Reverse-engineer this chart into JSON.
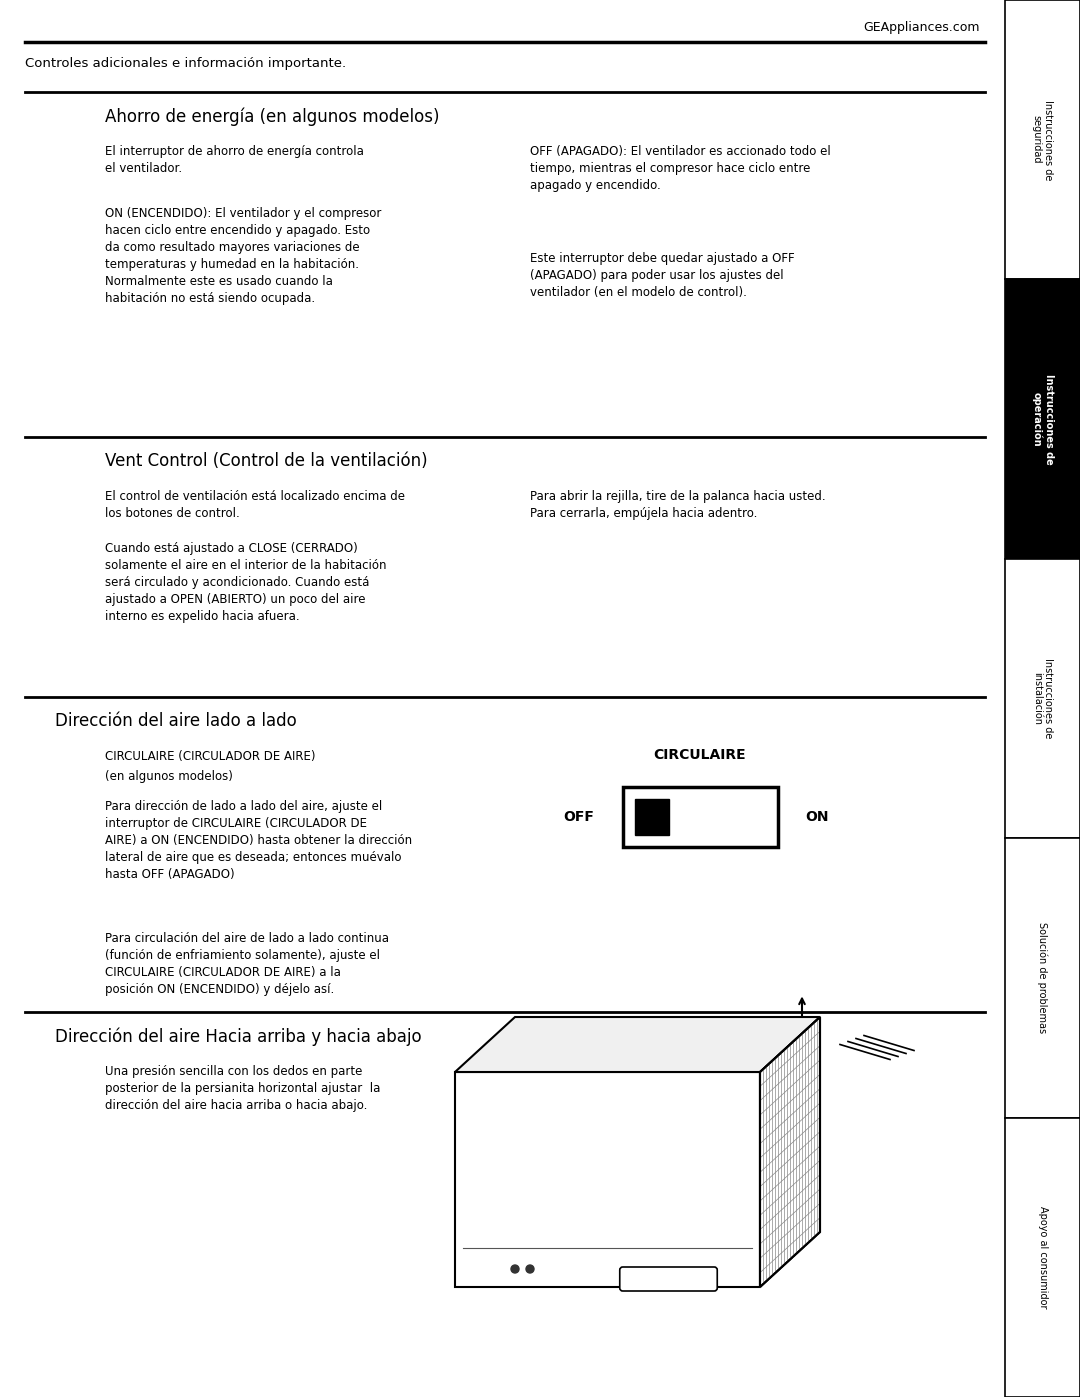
{
  "page_width": 10.8,
  "page_height": 13.97,
  "bg_color": "#ffffff",
  "text_color": "#000000",
  "header_url": "GEAppliances.com",
  "page_intro": "Controles adicionales e información importante.",
  "section1_title": "Ahorro de energía (en algunos modelos)",
  "section1_col1_p1": "El interruptor de ahorro de energía controla\nel ventilador.",
  "section1_col1_p2": "ON (ENCENDIDO): El ventilador y el compresor\nhacen ciclo entre encendido y apagado. Esto\nda como resultado mayores variaciones de\ntemperaturas y humedad en la habitación.\nNormalmente este es usado cuando la\nhabitación no está siendo ocupada.",
  "section1_col2_p1": "OFF (APAGADO): El ventilador es accionado todo el\ntiempo, mientras el compresor hace ciclo entre\napagado y encendido.",
  "section1_col2_p2": "Este interruptor debe quedar ajustado a OFF\n(APAGADO) para poder usar los ajustes del\nventilador (en el modelo de control).",
  "section2_title": "Vent Control (Control de la ventilación)",
  "section2_col1_p1": "El control de ventilación está localizado encima de\nlos botones de control.",
  "section2_col1_p2": "Cuando está ajustado a CLOSE (CERRADO)\nsolamente el aire en el interior de la habitación\nserá circulado y acondicionado. Cuando está\najustado a OPEN (ABIERTO) un poco del aire\ninterno es expelido hacia afuera.",
  "section2_col2_p1": "Para abrir la rejilla, tire de la palanca hacia usted.\nPara cerrarla, empújela hacia adentro.",
  "section3_title": "Dirección del aire lado a lado",
  "section3_sub1": "CIRCULAIRE (CIRCULADOR DE AIRE)",
  "section3_sub2": "(en algunos modelos)",
  "section3_col1_p1": "Para dirección de lado a lado del aire, ajuste el\ninterruptor de CIRCULAIRE (CIRCULADOR DE\nAIRE) a ON (ENCENDIDO) hasta obtener la dirección\nlateral de aire que es deseada; entonces muévalo\nhasta OFF (APAGADO)",
  "section3_col1_p2": "Para circulación del aire de lado a lado continua\n(función de enfriamiento solamente), ajuste el\nCIRCULAIRE (CIRCULADOR DE AIRE) a la\nposición ON (ENCENDIDO) y déjelo así.",
  "section3_diagram_label": "CIRCULAIRE",
  "section3_off_label": "OFF",
  "section3_on_label": "ON",
  "section4_title": "Dirección del aire Hacia arriba y hacia abajo",
  "section4_col1_p1": "Una presión sencilla con los dedos en parte\nposterior de la persianita horizontal ajustar  la\ndirección del aire hacia arriba o hacia abajo.",
  "sidebar_labels": [
    "Instrucciones de\nseguridad",
    "Instrucciones de\noperación",
    "Instrucciones de\ninstalación",
    "Solución de problemas",
    "Apoyo al consumidor"
  ],
  "sidebar_active": 1,
  "sidebar_colors": [
    "#ffffff",
    "#000000",
    "#ffffff",
    "#ffffff",
    "#ffffff"
  ],
  "sidebar_text_colors": [
    "#000000",
    "#ffffff",
    "#000000",
    "#000000",
    "#000000"
  ]
}
